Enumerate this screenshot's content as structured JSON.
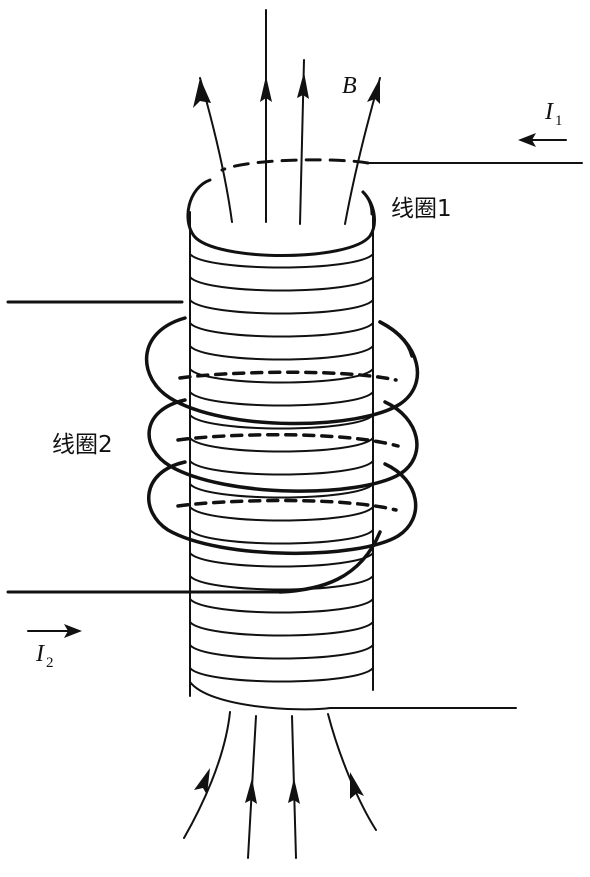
{
  "labels": {
    "coil1": "线圈1",
    "coil2": "线圈2",
    "field": "B",
    "current1": {
      "symbol": "I",
      "subscript": "1"
    },
    "current2": {
      "symbol": "I",
      "subscript": "2"
    }
  },
  "colors": {
    "stroke": "#111111",
    "background": "#ffffff"
  },
  "icons": {
    "field_arrow": "arrowhead",
    "current_arrow": "arrow-left-right"
  }
}
